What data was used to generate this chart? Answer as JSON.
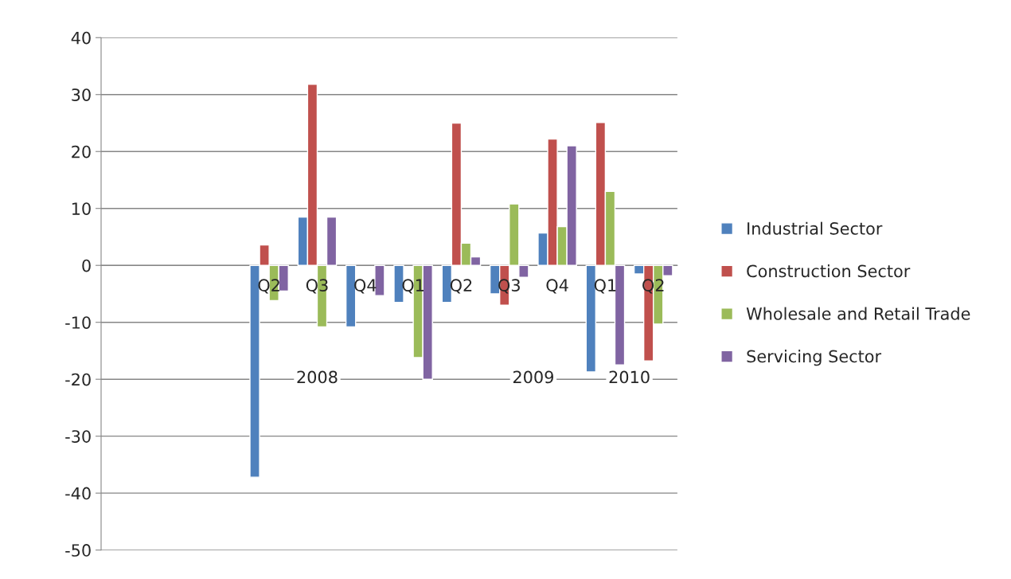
{
  "chart_data": {
    "type": "bar",
    "categories": [
      null,
      null,
      null,
      "Q2",
      "Q3",
      "Q4",
      "Q1",
      "Q2",
      "Q3",
      "Q4",
      "Q1",
      "Q2"
    ],
    "series": [
      {
        "name": "Industrial Sector",
        "color": "#4f81bd",
        "values": [
          null,
          null,
          null,
          -37.2,
          8.5,
          -10.8,
          -6.5,
          -6.5,
          -5,
          5.7,
          -18.7,
          -1.5
        ]
      },
      {
        "name": "Construction Sector",
        "color": "#c0504d",
        "values": [
          null,
          null,
          null,
          3.6,
          31.8,
          null,
          null,
          25,
          -7,
          22.2,
          25.1,
          -16.8
        ]
      },
      {
        "name": "Wholesale and Retail Trade",
        "color": "#9bbb59",
        "values": [
          null,
          null,
          null,
          -6.2,
          -10.8,
          null,
          -16.2,
          3.9,
          10.8,
          6.8,
          13,
          -10.3
        ]
      },
      {
        "name": "Servicing Sector",
        "color": "#8064a2",
        "values": [
          null,
          null,
          null,
          -4.5,
          8.5,
          -5.3,
          -20,
          1.5,
          -2.1,
          21,
          -17.5,
          -1.8
        ]
      }
    ],
    "annotations": [
      "2008",
      "2009",
      "2010"
    ],
    "ylim": [
      -50,
      40
    ],
    "yticks": [
      -50,
      -40,
      -30,
      -20,
      -10,
      0,
      10,
      20,
      30,
      40
    ],
    "grid": "y",
    "legend": "right"
  }
}
